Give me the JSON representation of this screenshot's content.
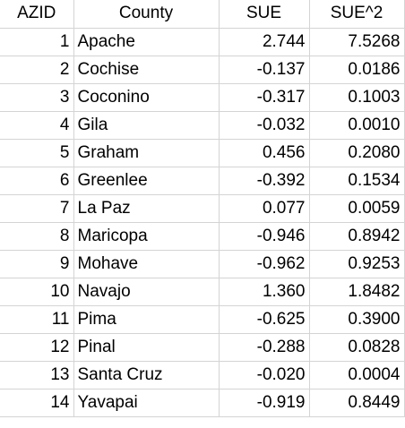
{
  "sheet": {
    "headers": {
      "azid": "AZID",
      "county": "County",
      "sue": "SUE",
      "sue2": "SUE^2"
    },
    "rows": [
      {
        "azid": "1",
        "county": "Apache",
        "sue": "2.744",
        "sue2": "7.5268"
      },
      {
        "azid": "2",
        "county": "Cochise",
        "sue": "-0.137",
        "sue2": "0.0186"
      },
      {
        "azid": "3",
        "county": "Coconino",
        "sue": "-0.317",
        "sue2": "0.1003"
      },
      {
        "azid": "4",
        "county": "Gila",
        "sue": "-0.032",
        "sue2": "0.0010"
      },
      {
        "azid": "5",
        "county": "Graham",
        "sue": "0.456",
        "sue2": "0.2080"
      },
      {
        "azid": "6",
        "county": "Greenlee",
        "sue": "-0.392",
        "sue2": "0.1534"
      },
      {
        "azid": "7",
        "county": "La Paz",
        "sue": "0.077",
        "sue2": "0.0059"
      },
      {
        "azid": "8",
        "county": "Maricopa",
        "sue": "-0.946",
        "sue2": "0.8942"
      },
      {
        "azid": "9",
        "county": "Mohave",
        "sue": "-0.962",
        "sue2": "0.9253"
      },
      {
        "azid": "10",
        "county": "Navajo",
        "sue": "1.360",
        "sue2": "1.8482"
      },
      {
        "azid": "11",
        "county": "Pima",
        "sue": "-0.625",
        "sue2": "0.3900"
      },
      {
        "azid": "12",
        "county": "Pinal",
        "sue": "-0.288",
        "sue2": "0.0828"
      },
      {
        "azid": "13",
        "county": "Santa Cruz",
        "sue": "-0.020",
        "sue2": "0.0004"
      },
      {
        "azid": "14",
        "county": "Yavapai",
        "sue": "-0.919",
        "sue2": "0.8449"
      }
    ]
  }
}
